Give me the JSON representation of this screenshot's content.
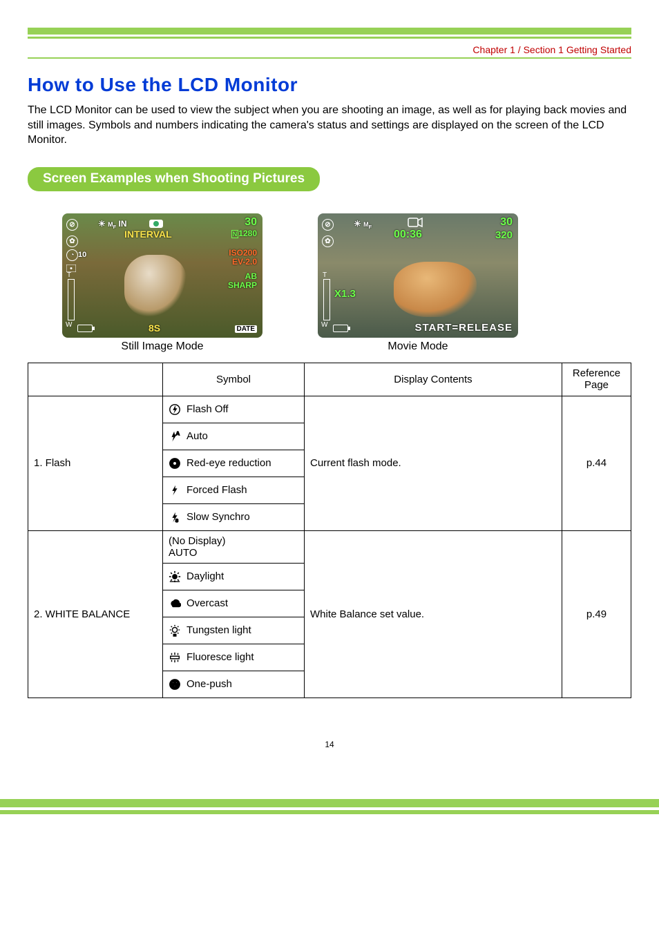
{
  "header": {
    "chapter": "Chapter 1 / Section 1 Getting Started"
  },
  "title": "How to Use the LCD Monitor",
  "intro": "The LCD Monitor can be used to view the subject when you are shooting an image, as well as for playing back movies and still images. Symbols and numbers indicating the camera's status and settings are displayed on the screen of the LCD Monitor.",
  "section_pill": "Screen Examples when Shooting Pictures",
  "still_lcd": {
    "caption": "Still Image Mode",
    "interval": "INTERVAL",
    "count": "30",
    "size_prefix": "N",
    "size": "1280",
    "iso": "ISO200",
    "ev": "EV-2.0",
    "ab": "AB",
    "sharp": "SHARP",
    "timer": "10",
    "shutter": "8S",
    "date": "DATE"
  },
  "movie_lcd": {
    "caption": "Movie Mode",
    "count": "30",
    "size": "320",
    "time": "00:36",
    "zoom": "X1.3",
    "start": "START=RELEASE"
  },
  "table": {
    "headers": {
      "blank": "",
      "symbol": "Symbol",
      "display": "Display Contents",
      "ref": "Reference Page"
    },
    "rows": [
      {
        "item": "1. Flash",
        "display": "Current flash mode.",
        "ref": "p.44",
        "symbols": [
          {
            "icon": "flash-off",
            "label": "Flash Off"
          },
          {
            "icon": "flash-auto",
            "label": "Auto"
          },
          {
            "icon": "red-eye",
            "label": "Red-eye reduction"
          },
          {
            "icon": "flash-forced",
            "label": "Forced Flash"
          },
          {
            "icon": "flash-slow",
            "label": "Slow Synchro"
          }
        ]
      },
      {
        "item": "2. WHITE BALANCE",
        "display": "White Balance set value.",
        "ref": "p.49",
        "symbols": [
          {
            "icon": "none",
            "label": "(No Display) AUTO",
            "multiline": true
          },
          {
            "icon": "daylight",
            "label": "Daylight"
          },
          {
            "icon": "overcast",
            "label": "Overcast"
          },
          {
            "icon": "tungsten",
            "label": "Tungsten light"
          },
          {
            "icon": "fluoresce",
            "label": "Fluoresce light"
          },
          {
            "icon": "one-push",
            "label": "One-push"
          }
        ]
      }
    ]
  },
  "page_number": "14",
  "colors": {
    "accent_green": "#97d156",
    "pill_green": "#8bc940",
    "title_blue": "#003bd6",
    "chapter_red": "#c00000",
    "osd_green": "#6dff4a",
    "osd_yellow": "#f9e24a"
  }
}
